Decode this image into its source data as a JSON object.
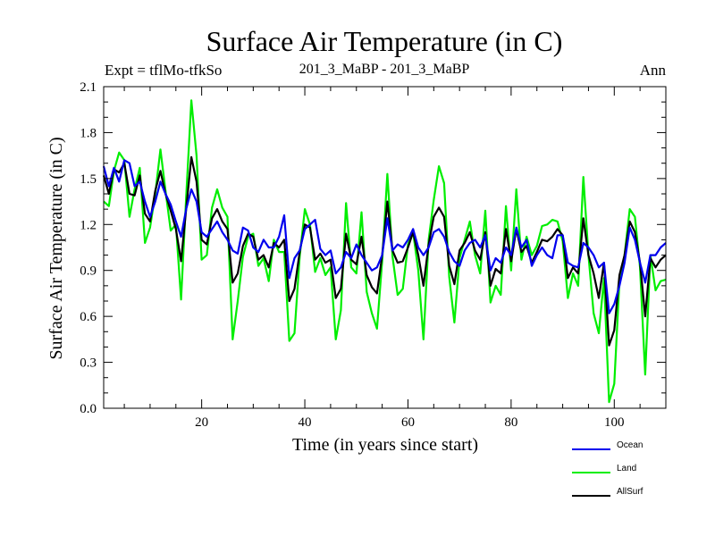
{
  "chart_data": {
    "type": "line",
    "title": "Surface Air Temperature (in C)",
    "left_label": "Expt = tflMo-tfkSo",
    "center_label": "201_3_MaBP - 201_3_MaBP",
    "right_label": "Ann",
    "xlabel": "Time (in years since start)",
    "ylabel": "Surface Air Temperature (in C)",
    "xlim": [
      1,
      110
    ],
    "ylim": [
      0.0,
      2.1
    ],
    "xticks": [
      20,
      40,
      60,
      80,
      100
    ],
    "yticks": [
      0.0,
      0.3,
      0.6,
      0.9,
      1.2,
      1.5,
      1.8,
      2.1
    ],
    "ytick_labels": [
      "0.0",
      "0.3",
      "0.6",
      "0.9",
      "1.2",
      "1.5",
      "1.8",
      "2.1"
    ],
    "grid": false,
    "series": [
      {
        "name": "Land",
        "color": "#00ee00",
        "values": [
          1.35,
          1.32,
          1.55,
          1.67,
          1.62,
          1.25,
          1.43,
          1.57,
          1.08,
          1.18,
          1.4,
          1.69,
          1.42,
          1.16,
          1.2,
          0.71,
          1.38,
          2.01,
          1.65,
          0.97,
          1.0,
          1.31,
          1.43,
          1.31,
          1.25,
          0.45,
          0.7,
          0.99,
          1.12,
          1.14,
          0.93,
          0.98,
          0.83,
          1.1,
          1.02,
          1.02,
          0.44,
          0.49,
          0.99,
          1.3,
          1.2,
          0.89,
          0.98,
          0.87,
          0.92,
          0.45,
          0.64,
          1.34,
          0.92,
          0.88,
          1.28,
          0.76,
          0.62,
          0.52,
          0.96,
          1.53,
          0.99,
          0.74,
          0.78,
          1.07,
          1.15,
          0.9,
          0.45,
          1.1,
          1.36,
          1.58,
          1.47,
          0.86,
          0.56,
          0.98,
          1.1,
          1.22,
          1.0,
          0.88,
          1.29,
          0.69,
          0.8,
          0.74,
          1.32,
          0.9,
          1.43,
          0.97,
          1.12,
          1.0,
          1.06,
          1.19,
          1.2,
          1.23,
          1.22,
          1.09,
          0.72,
          0.88,
          0.8,
          1.51,
          1.0,
          0.62,
          0.49,
          0.85,
          0.04,
          0.16,
          0.83,
          1.0,
          1.3,
          1.25,
          0.92,
          0.22,
          1.0,
          0.77,
          0.83,
          0.84
        ]
      },
      {
        "name": "AllSurf",
        "color": "#000000",
        "values": [
          1.52,
          1.4,
          1.56,
          1.54,
          1.6,
          1.4,
          1.39,
          1.52,
          1.27,
          1.22,
          1.42,
          1.55,
          1.4,
          1.29,
          1.17,
          0.96,
          1.3,
          1.64,
          1.48,
          1.1,
          1.07,
          1.24,
          1.3,
          1.22,
          1.17,
          0.82,
          0.88,
          1.06,
          1.14,
          1.12,
          0.97,
          1.0,
          0.92,
          1.08,
          1.05,
          1.1,
          0.7,
          0.78,
          1.02,
          1.2,
          1.18,
          0.97,
          1.01,
          0.95,
          0.97,
          0.72,
          0.78,
          1.14,
          0.97,
          0.94,
          1.12,
          0.87,
          0.79,
          0.75,
          1.0,
          1.35,
          1.03,
          0.95,
          0.96,
          1.05,
          1.15,
          1.0,
          0.8,
          1.07,
          1.25,
          1.31,
          1.25,
          0.93,
          0.81,
          1.03,
          1.08,
          1.15,
          1.03,
          0.97,
          1.15,
          0.8,
          0.91,
          0.88,
          1.17,
          0.96,
          1.17,
          1.02,
          1.06,
          0.95,
          1.02,
          1.1,
          1.09,
          1.12,
          1.17,
          1.13,
          0.85,
          0.92,
          0.88,
          1.24,
          1.0,
          0.88,
          0.72,
          0.95,
          0.41,
          0.51,
          0.87,
          1.0,
          1.22,
          1.15,
          0.95,
          0.6,
          0.98,
          0.92,
          0.97,
          1.0
        ]
      },
      {
        "name": "Ocean",
        "color": "#0000ee",
        "values": [
          1.58,
          1.45,
          1.57,
          1.48,
          1.62,
          1.6,
          1.45,
          1.48,
          1.35,
          1.25,
          1.35,
          1.48,
          1.4,
          1.33,
          1.22,
          1.12,
          1.3,
          1.43,
          1.35,
          1.15,
          1.12,
          1.17,
          1.22,
          1.15,
          1.1,
          1.03,
          1.01,
          1.18,
          1.16,
          1.05,
          1.02,
          1.1,
          1.05,
          1.05,
          1.12,
          1.26,
          0.85,
          0.98,
          1.03,
          1.17,
          1.2,
          1.23,
          1.04,
          1.0,
          1.03,
          0.88,
          0.92,
          1.02,
          0.98,
          1.07,
          1.0,
          0.95,
          0.9,
          0.92,
          1.0,
          1.24,
          1.03,
          1.07,
          1.05,
          1.1,
          1.17,
          1.05,
          1.0,
          1.05,
          1.15,
          1.17,
          1.12,
          1.02,
          0.96,
          0.93,
          1.03,
          1.08,
          1.1,
          1.05,
          1.13,
          0.9,
          0.98,
          0.95,
          1.05,
          1.0,
          1.18,
          1.05,
          1.1,
          0.93,
          1.0,
          1.05,
          1.0,
          0.98,
          1.13,
          1.13,
          0.95,
          0.93,
          0.92,
          1.08,
          1.05,
          1.0,
          0.92,
          0.95,
          0.62,
          0.68,
          0.8,
          0.95,
          1.18,
          1.1,
          0.95,
          0.82,
          1.0,
          1.0,
          1.05,
          1.08
        ]
      }
    ],
    "legend": {
      "placement": "bottom-right",
      "entries": [
        {
          "label": "Ocean",
          "color": "#0000ee"
        },
        {
          "label": "Land",
          "color": "#00ee00"
        },
        {
          "label": "AllSurf",
          "color": "#000000"
        }
      ]
    }
  }
}
